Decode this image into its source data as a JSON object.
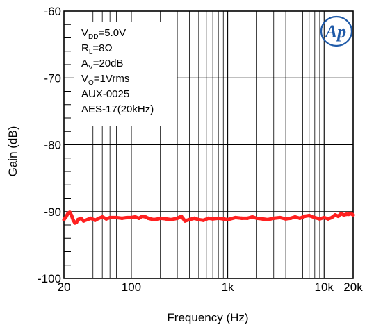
{
  "chart_data": {
    "type": "line",
    "title": "",
    "xlabel": "Frequency (Hz)",
    "ylabel": "Gain (dB)",
    "xscale": "log",
    "xlim": [
      20,
      20000
    ],
    "ylim": [
      -100,
      -60
    ],
    "grid": true,
    "x_ticks": [
      {
        "value": 20,
        "label": "20"
      },
      {
        "value": 100,
        "label": "100"
      },
      {
        "value": 1000,
        "label": "1k"
      },
      {
        "value": 10000,
        "label": "10k"
      },
      {
        "value": 20000,
        "label": "20k"
      }
    ],
    "y_ticks": [
      {
        "value": -60,
        "label": "-60"
      },
      {
        "value": -70,
        "label": "-70"
      },
      {
        "value": -80,
        "label": "-80"
      },
      {
        "value": -90,
        "label": "-90"
      },
      {
        "value": -100,
        "label": "-100"
      }
    ],
    "annotations": [
      {
        "parts": [
          [
            "V",
            ""
          ],
          [
            "DD",
            "sub"
          ],
          [
            "=5.0V",
            ""
          ]
        ]
      },
      {
        "parts": [
          [
            "R",
            ""
          ],
          [
            "L",
            "sub"
          ],
          [
            "=8Ω",
            ""
          ]
        ]
      },
      {
        "parts": [
          [
            "A",
            ""
          ],
          [
            "V",
            "sub"
          ],
          [
            "=20dB",
            ""
          ]
        ]
      },
      {
        "parts": [
          [
            "V",
            ""
          ],
          [
            "O",
            "sub"
          ],
          [
            "=1Vrms",
            ""
          ]
        ]
      },
      {
        "parts": [
          [
            "AUX-0025",
            ""
          ]
        ]
      },
      {
        "parts": [
          [
            "AES-17(20kHz)",
            ""
          ]
        ]
      }
    ],
    "logo_text": "Ap",
    "series": [
      {
        "color": "#ff2020",
        "x": [
          20,
          21,
          22,
          23,
          24,
          25,
          26,
          27,
          28,
          30,
          32,
          35,
          38,
          42,
          46,
          50,
          55,
          60,
          70,
          80,
          90,
          100,
          110,
          120,
          130,
          140,
          150,
          170,
          190,
          200,
          230,
          260,
          300,
          330,
          360,
          400,
          450,
          500,
          560,
          630,
          700,
          800,
          900,
          1000,
          1200,
          1400,
          1600,
          1800,
          2000,
          2300,
          2600,
          3000,
          3500,
          4000,
          4500,
          5000,
          5600,
          6300,
          7000,
          8000,
          9000,
          10000,
          11000,
          12000,
          13000,
          14000,
          15000,
          16000,
          17000,
          18000,
          19000,
          20000
        ],
        "values": [
          -91.2,
          -90.8,
          -90.3,
          -90.1,
          -90.6,
          -91.3,
          -91.7,
          -91.6,
          -91.2,
          -91.0,
          -91.4,
          -91.2,
          -91.0,
          -91.3,
          -91.0,
          -90.8,
          -91.1,
          -90.9,
          -90.9,
          -91.0,
          -90.9,
          -90.9,
          -90.8,
          -91.0,
          -90.7,
          -90.8,
          -91.0,
          -91.2,
          -91.1,
          -91.0,
          -91.1,
          -91.2,
          -91.0,
          -90.7,
          -91.4,
          -91.2,
          -91.0,
          -91.2,
          -91.3,
          -91.0,
          -91.1,
          -91.0,
          -91.1,
          -91.2,
          -90.9,
          -91.0,
          -91.0,
          -90.8,
          -91.0,
          -91.1,
          -91.2,
          -91.0,
          -90.9,
          -91.1,
          -91.0,
          -90.8,
          -91.0,
          -90.7,
          -90.6,
          -90.9,
          -91.1,
          -90.9,
          -91.1,
          -90.9,
          -90.5,
          -90.7,
          -90.3,
          -90.5,
          -90.4,
          -90.4,
          -90.3,
          -90.5
        ]
      }
    ]
  }
}
